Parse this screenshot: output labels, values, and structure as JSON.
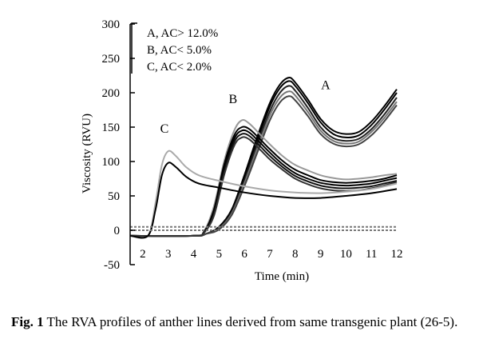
{
  "chart_data": {
    "type": "line",
    "title": "",
    "xlabel": "Time (min)",
    "ylabel": "Viscosity (RVU)",
    "xlim": [
      1.5,
      12
    ],
    "ylim": [
      -50,
      300
    ],
    "x_ticks": [
      2,
      3,
      4,
      5,
      6,
      7,
      8,
      9,
      10,
      11,
      12
    ],
    "y_ticks": [
      -50,
      0,
      50,
      100,
      150,
      200,
      250,
      300
    ],
    "legend": {
      "position": "top-left",
      "entries": [
        "A, AC> 12.0%",
        "B, AC< 5.0%",
        "C, AC< 2.0%"
      ]
    },
    "curve_labels": [
      {
        "text": "A",
        "x": 9.2,
        "y": 205
      },
      {
        "text": "B",
        "x": 5.55,
        "y": 185
      },
      {
        "text": "C",
        "x": 2.85,
        "y": 142
      }
    ],
    "series": [
      {
        "group": "A",
        "color": "#000000",
        "x": [
          1.5,
          4.0,
          4.5,
          5.0,
          5.5,
          6.0,
          6.5,
          7.0,
          7.4,
          7.75,
          8.0,
          8.5,
          9.0,
          9.5,
          10.0,
          10.5,
          11.0,
          11.5,
          12.0
        ],
        "y": [
          -8,
          -8,
          -5,
          5,
          30,
          80,
          135,
          185,
          212,
          222,
          215,
          190,
          162,
          145,
          140,
          143,
          158,
          180,
          205
        ]
      },
      {
        "group": "A",
        "color": "#000000",
        "x": [
          1.5,
          4.0,
          4.5,
          5.0,
          5.5,
          6.0,
          6.5,
          7.0,
          7.4,
          7.75,
          8.0,
          8.5,
          9.0,
          9.5,
          10.0,
          10.5,
          11.0,
          11.5,
          12.0
        ],
        "y": [
          -8,
          -8,
          -5,
          4,
          28,
          76,
          130,
          180,
          207,
          217,
          210,
          185,
          157,
          140,
          135,
          138,
          153,
          175,
          200
        ]
      },
      {
        "group": "A",
        "color": "#222222",
        "x": [
          1.5,
          4.0,
          4.5,
          5.0,
          5.5,
          6.0,
          6.5,
          7.0,
          7.4,
          7.75,
          8.0,
          8.5,
          9.0,
          9.5,
          10.0,
          10.5,
          11.0,
          11.5,
          12.0
        ],
        "y": [
          -8,
          -8,
          -5,
          3,
          26,
          72,
          124,
          173,
          200,
          210,
          203,
          178,
          150,
          134,
          130,
          133,
          147,
          168,
          193
        ]
      },
      {
        "group": "A",
        "color": "#777777",
        "x": [
          1.5,
          4.0,
          4.5,
          5.0,
          5.5,
          6.0,
          6.5,
          7.0,
          7.4,
          7.75,
          8.0,
          8.5,
          9.0,
          9.5,
          10.0,
          10.5,
          11.0,
          11.5,
          12.0
        ],
        "y": [
          -8,
          -8,
          -5,
          2,
          24,
          68,
          118,
          167,
          193,
          202,
          196,
          172,
          145,
          130,
          126,
          129,
          143,
          163,
          187
        ]
      },
      {
        "group": "A",
        "color": "#444444",
        "x": [
          1.5,
          4.0,
          4.5,
          5.0,
          5.5,
          6.0,
          6.5,
          7.0,
          7.4,
          7.75,
          8.0,
          8.5,
          9.0,
          9.5,
          10.0,
          10.5,
          11.0,
          11.5,
          12.0
        ],
        "y": [
          -8,
          -8,
          -5,
          1,
          22,
          64,
          112,
          160,
          186,
          195,
          189,
          166,
          140,
          126,
          122,
          125,
          138,
          158,
          182
        ]
      },
      {
        "group": "B",
        "color": "#999999",
        "x": [
          1.5,
          4.0,
          4.4,
          4.8,
          5.2,
          5.6,
          5.9,
          6.2,
          6.6,
          7.0,
          7.5,
          8.0,
          8.5,
          9.0,
          9.5,
          10.0,
          10.5,
          11.0,
          11.5,
          12.0
        ],
        "y": [
          -8,
          -8,
          -2,
          35,
          100,
          145,
          160,
          155,
          140,
          125,
          108,
          95,
          87,
          80,
          76,
          74,
          75,
          77,
          80,
          82
        ]
      },
      {
        "group": "B",
        "color": "#000000",
        "x": [
          1.5,
          4.0,
          4.4,
          4.8,
          5.2,
          5.6,
          5.9,
          6.2,
          6.6,
          7.0,
          7.5,
          8.0,
          8.5,
          9.0,
          9.5,
          10.0,
          10.5,
          11.0,
          11.5,
          12.0
        ],
        "y": [
          -8,
          -8,
          -3,
          30,
          95,
          138,
          150,
          147,
          133,
          118,
          101,
          88,
          80,
          73,
          70,
          69,
          70,
          72,
          75,
          80
        ]
      },
      {
        "group": "B",
        "color": "#000000",
        "x": [
          1.5,
          4.0,
          4.4,
          4.8,
          5.2,
          5.6,
          5.9,
          6.2,
          6.6,
          7.0,
          7.5,
          8.0,
          8.5,
          9.0,
          9.5,
          10.0,
          10.5,
          11.0,
          11.5,
          12.0
        ],
        "y": [
          -8,
          -8,
          -3,
          27,
          90,
          133,
          145,
          142,
          128,
          113,
          96,
          83,
          75,
          69,
          66,
          65,
          66,
          68,
          72,
          76
        ]
      },
      {
        "group": "B",
        "color": "#111111",
        "x": [
          1.5,
          4.0,
          4.4,
          4.8,
          5.2,
          5.6,
          5.9,
          6.2,
          6.6,
          7.0,
          7.5,
          8.0,
          8.5,
          9.0,
          9.5,
          10.0,
          10.5,
          11.0,
          11.5,
          12.0
        ],
        "y": [
          -8,
          -8,
          -4,
          24,
          85,
          128,
          140,
          137,
          123,
          108,
          92,
          79,
          71,
          65,
          62,
          61,
          62,
          64,
          68,
          72
        ]
      },
      {
        "group": "B",
        "color": "#333333",
        "x": [
          1.5,
          4.0,
          4.4,
          4.8,
          5.2,
          5.6,
          5.9,
          6.2,
          6.6,
          7.0,
          7.5,
          8.0,
          8.5,
          9.0,
          9.5,
          10.0,
          10.5,
          11.0,
          11.5,
          12.0
        ],
        "y": [
          -8,
          -8,
          -4,
          21,
          80,
          123,
          135,
          132,
          118,
          103,
          88,
          75,
          67,
          61,
          58,
          57,
          58,
          61,
          65,
          70
        ]
      },
      {
        "group": "C",
        "color": "#aaaaaa",
        "x": [
          1.5,
          2.2,
          2.5,
          2.75,
          3.0,
          3.3,
          3.7,
          4.2,
          5.0,
          6.0,
          7.0,
          8.0,
          9.0,
          10.0,
          11.0,
          12.0
        ],
        "y": [
          -8,
          -8,
          40,
          95,
          115,
          108,
          92,
          80,
          72,
          64,
          58,
          55,
          54,
          56,
          60,
          68
        ]
      },
      {
        "group": "C",
        "color": "#000000",
        "x": [
          1.5,
          2.2,
          2.5,
          2.75,
          3.0,
          3.3,
          3.7,
          4.2,
          5.0,
          6.0,
          7.0,
          8.0,
          9.0,
          10.0,
          11.0,
          12.0
        ],
        "y": [
          -8,
          -8,
          30,
          80,
          98,
          92,
          78,
          68,
          62,
          55,
          50,
          47,
          47,
          50,
          54,
          60
        ]
      },
      {
        "group": "baseline",
        "color": "#777777",
        "dash": true,
        "x": [
          1.5,
          12.0
        ],
        "y": [
          0,
          0
        ]
      },
      {
        "group": "baseline",
        "color": "#777777",
        "dash": true,
        "x": [
          1.5,
          12.0
        ],
        "y": [
          5,
          5
        ]
      }
    ]
  },
  "caption": {
    "label": "Fig. 1",
    "text": " The RVA profiles of anther lines derived from same transgenic plant (26-5)."
  }
}
